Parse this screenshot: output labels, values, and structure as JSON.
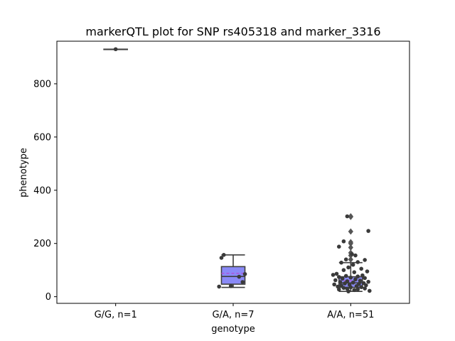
{
  "chart_data": {
    "type": "box",
    "title": "markerQTL plot for SNP rs405318 and marker_3316",
    "xlabel": "genotype",
    "ylabel": "phenotype",
    "ylim": [
      -25,
      960
    ],
    "yticks": [
      0,
      200,
      400,
      600,
      800
    ],
    "grid": false,
    "legend": "none",
    "categories": [
      "G/G, n=1",
      "G/A, n=7",
      "A/A, n=51"
    ],
    "boxes": [
      {
        "category": "G/G, n=1",
        "min": 930,
        "q1": 930,
        "median": 930,
        "q3": 930,
        "max": 930,
        "mean": 930,
        "outliers": [],
        "color": "#8a8af7"
      },
      {
        "category": "G/A, n=7",
        "min": 35,
        "q1": 47,
        "median": 76,
        "q3": 113,
        "max": 157,
        "mean": 88,
        "outliers": [],
        "color": "#8a8af7"
      },
      {
        "category": "A/A, n=51",
        "min": 20,
        "q1": 35,
        "median": 52,
        "q3": 75,
        "max": 128,
        "mean": 60,
        "outliers": [
          140,
          155,
          165,
          185,
          200,
          205,
          245,
          300,
          302
        ],
        "color": "#8a8af7"
      }
    ],
    "points": [
      {
        "category": "G/G, n=1",
        "jitter": 0.0,
        "value": 930
      },
      {
        "category": "G/A, n=7",
        "jitter": -0.08,
        "value": 157
      },
      {
        "category": "G/A, n=7",
        "jitter": -0.1,
        "value": 146
      },
      {
        "category": "G/A, n=7",
        "jitter": 0.1,
        "value": 85
      },
      {
        "category": "G/A, n=7",
        "jitter": 0.05,
        "value": 75
      },
      {
        "category": "G/A, n=7",
        "jitter": 0.08,
        "value": 55
      },
      {
        "category": "G/A, n=7",
        "jitter": -0.02,
        "value": 40
      },
      {
        "category": "G/A, n=7",
        "jitter": -0.12,
        "value": 38
      },
      {
        "category": "A/A, n=51",
        "jitter": -0.03,
        "value": 302
      },
      {
        "category": "A/A, n=51",
        "jitter": 0.15,
        "value": 247
      },
      {
        "category": "A/A, n=51",
        "jitter": -0.06,
        "value": 208
      },
      {
        "category": "A/A, n=51",
        "jitter": -0.1,
        "value": 188
      },
      {
        "category": "A/A, n=51",
        "jitter": 0.01,
        "value": 160
      },
      {
        "category": "A/A, n=51",
        "jitter": 0.04,
        "value": 155
      },
      {
        "category": "A/A, n=51",
        "jitter": -0.04,
        "value": 140
      },
      {
        "category": "A/A, n=51",
        "jitter": 0.12,
        "value": 138
      },
      {
        "category": "A/A, n=51",
        "jitter": 0.06,
        "value": 130
      },
      {
        "category": "A/A, n=51",
        "jitter": -0.08,
        "value": 128
      },
      {
        "category": "A/A, n=51",
        "jitter": 0.02,
        "value": 120
      },
      {
        "category": "A/A, n=51",
        "jitter": -0.02,
        "value": 110
      },
      {
        "category": "A/A, n=51",
        "jitter": 0.09,
        "value": 105
      },
      {
        "category": "A/A, n=51",
        "jitter": -0.06,
        "value": 100
      },
      {
        "category": "A/A, n=51",
        "jitter": 0.14,
        "value": 95
      },
      {
        "category": "A/A, n=51",
        "jitter": 0.03,
        "value": 92
      },
      {
        "category": "A/A, n=51",
        "jitter": -0.12,
        "value": 86
      },
      {
        "category": "A/A, n=51",
        "jitter": -0.15,
        "value": 82
      },
      {
        "category": "A/A, n=51",
        "jitter": 0.1,
        "value": 80
      },
      {
        "category": "A/A, n=51",
        "jitter": -0.04,
        "value": 78
      },
      {
        "category": "A/A, n=51",
        "jitter": 0.06,
        "value": 76
      },
      {
        "category": "A/A, n=51",
        "jitter": -0.1,
        "value": 74
      },
      {
        "category": "A/A, n=51",
        "jitter": 0.0,
        "value": 72
      },
      {
        "category": "A/A, n=51",
        "jitter": 0.12,
        "value": 70
      },
      {
        "category": "A/A, n=51",
        "jitter": -0.07,
        "value": 68
      },
      {
        "category": "A/A, n=51",
        "jitter": 0.04,
        "value": 65
      },
      {
        "category": "A/A, n=51",
        "jitter": -0.13,
        "value": 62
      },
      {
        "category": "A/A, n=51",
        "jitter": 0.08,
        "value": 60
      },
      {
        "category": "A/A, n=51",
        "jitter": -0.03,
        "value": 58
      },
      {
        "category": "A/A, n=51",
        "jitter": 0.15,
        "value": 56
      },
      {
        "category": "A/A, n=51",
        "jitter": -0.09,
        "value": 55
      },
      {
        "category": "A/A, n=51",
        "jitter": 0.02,
        "value": 53
      },
      {
        "category": "A/A, n=51",
        "jitter": 0.11,
        "value": 51
      },
      {
        "category": "A/A, n=51",
        "jitter": -0.05,
        "value": 50
      },
      {
        "category": "A/A, n=51",
        "jitter": 0.07,
        "value": 48
      },
      {
        "category": "A/A, n=51",
        "jitter": -0.14,
        "value": 46
      },
      {
        "category": "A/A, n=51",
        "jitter": -0.01,
        "value": 45
      },
      {
        "category": "A/A, n=51",
        "jitter": 0.13,
        "value": 43
      },
      {
        "category": "A/A, n=51",
        "jitter": -0.08,
        "value": 42
      },
      {
        "category": "A/A, n=51",
        "jitter": 0.05,
        "value": 40
      },
      {
        "category": "A/A, n=51",
        "jitter": -0.11,
        "value": 38
      },
      {
        "category": "A/A, n=51",
        "jitter": 0.09,
        "value": 36
      },
      {
        "category": "A/A, n=51",
        "jitter": 0.0,
        "value": 35
      },
      {
        "category": "A/A, n=51",
        "jitter": -0.06,
        "value": 33
      },
      {
        "category": "A/A, n=51",
        "jitter": 0.12,
        "value": 31
      },
      {
        "category": "A/A, n=51",
        "jitter": -0.03,
        "value": 30
      },
      {
        "category": "A/A, n=51",
        "jitter": 0.06,
        "value": 28
      },
      {
        "category": "A/A, n=51",
        "jitter": -0.1,
        "value": 27
      },
      {
        "category": "A/A, n=51",
        "jitter": 0.03,
        "value": 25
      },
      {
        "category": "A/A, n=51",
        "jitter": 0.16,
        "value": 22
      },
      {
        "category": "A/A, n=51",
        "jitter": -0.02,
        "value": 20
      }
    ],
    "colors": {
      "box_fill": "#8a8af7",
      "box_edge": "#3f3f3f",
      "point": "#3a3a3a",
      "mean_line": "#b04fd6",
      "outlier": "#555555"
    }
  }
}
